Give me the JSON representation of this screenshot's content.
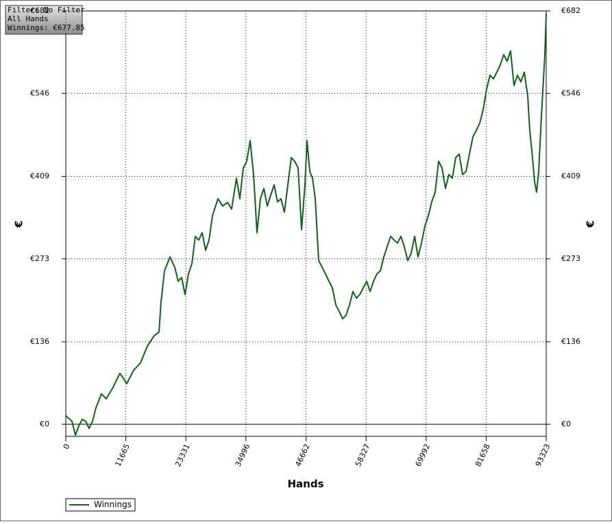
{
  "chart_data": {
    "type": "line",
    "annotations": [
      "Filter: No Filter",
      "All Hands",
      "Winnings: €677.85"
    ],
    "xlabel": "Hands",
    "ylabel": "€",
    "y2label": "€",
    "xlim": [
      0,
      93323
    ],
    "xticks": [
      0,
      11665,
      23331,
      34996,
      46662,
      58327,
      69992,
      81658,
      93323
    ],
    "ylim": [
      -20,
      682
    ],
    "yticks": [
      {
        "value": 0,
        "label": "€0"
      },
      {
        "value": 136,
        "label": "€136"
      },
      {
        "value": 273,
        "label": "€273"
      },
      {
        "value": 409,
        "label": "€409"
      },
      {
        "value": 546,
        "label": "€546"
      },
      {
        "value": 682,
        "label": "€682"
      }
    ],
    "grid": true,
    "legend": "bottom-left",
    "x": [
      0,
      533,
      1198,
      1864,
      2529,
      3195,
      3861,
      4526,
      5192,
      5858,
      6923,
      7855,
      9186,
      10517,
      11848,
      13180,
      14511,
      15842,
      17174,
      18105,
      18505,
      19170,
      20235,
      21167,
      21833,
      22499,
      23164,
      23830,
      24496,
      25161,
      25827,
      26492,
      27158,
      27824,
      28489,
      29554,
      30486,
      31418,
      32217,
      33149,
      33815,
      34480,
      35146,
      35811,
      36477,
      37143,
      37808,
      38474,
      39140,
      39805,
      40471,
      41136,
      41802,
      42468,
      43133,
      43799,
      44465,
      45130,
      45796,
      46462,
      46861,
      47394,
      47926,
      48459,
      49124,
      49790,
      50456,
      51121,
      51787,
      52452,
      53118,
      53784,
      54449,
      55115,
      55781,
      56446,
      57112,
      57778,
      58443,
      59109,
      59774,
      60440,
      61106,
      61771,
      62437,
      63103,
      63768,
      64434,
      65100,
      65765,
      66431,
      67097,
      67762,
      68428,
      69093,
      69759,
      70425,
      71090,
      71756,
      72422,
      73087,
      73753,
      74419,
      75084,
      75750,
      76416,
      77081,
      77747,
      78412,
      79078,
      79744,
      80409,
      81075,
      81741,
      82406,
      83072,
      83738,
      84403,
      85069,
      85735,
      86400,
      87066,
      87731,
      88397,
      89063,
      89728,
      90128,
      90660,
      91060,
      91459,
      91858,
      92391,
      93057,
      93323
    ],
    "series": [
      {
        "name": "Winnings",
        "color": "#0a6414",
        "values": [
          14,
          10,
          5,
          -18,
          -3,
          8,
          5,
          -7,
          5,
          27,
          50,
          42,
          61,
          84,
          67,
          89,
          101,
          129,
          146,
          152,
          202,
          253,
          276,
          259,
          236,
          242,
          214,
          248,
          265,
          310,
          304,
          316,
          287,
          304,
          344,
          372,
          360,
          366,
          355,
          406,
          372,
          423,
          434,
          468,
          412,
          316,
          372,
          389,
          360,
          378,
          395,
          367,
          372,
          350,
          395,
          440,
          434,
          423,
          321,
          395,
          468,
          417,
          406,
          372,
          270,
          259,
          248,
          236,
          225,
          197,
          186,
          174,
          180,
          197,
          219,
          208,
          214,
          225,
          236,
          219,
          236,
          248,
          253,
          276,
          293,
          310,
          304,
          299,
          310,
          293,
          270,
          282,
          310,
          276,
          299,
          327,
          344,
          367,
          383,
          434,
          423,
          389,
          412,
          406,
          440,
          446,
          412,
          417,
          446,
          474,
          485,
          497,
          519,
          553,
          576,
          570,
          581,
          593,
          610,
          599,
          616,
          559,
          576,
          565,
          581,
          542,
          485,
          440,
          400,
          383,
          417,
          508,
          610,
          677.85
        ]
      }
    ]
  }
}
